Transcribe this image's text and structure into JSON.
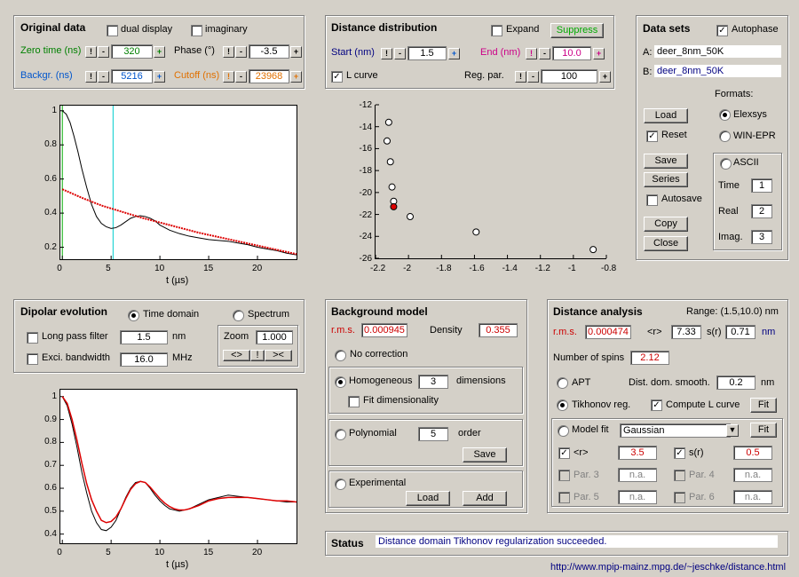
{
  "original": {
    "title": "Original data",
    "dual_display": "dual display",
    "dual_display_checked": false,
    "imaginary": "imaginary",
    "imaginary_checked": false,
    "zero_time_label": "Zero time (ns)",
    "zero_time": "320",
    "phase_label": "Phase (°)",
    "phase": "-3.5",
    "backgr_label": "Backgr. (ns)",
    "backgr": "5216",
    "cutoff_label": "Cutoff (ns)",
    "cutoff": "23968"
  },
  "distdist": {
    "title": "Distance distribution",
    "expand": "Expand",
    "expand_checked": false,
    "suppress": "Suppress",
    "start_label": "Start (nm)",
    "start": "1.5",
    "end_label": "End (nm)",
    "end": "10.0",
    "lcurve": "L curve",
    "lcurve_checked": true,
    "regpar_label": "Reg. par.",
    "regpar": "100"
  },
  "datasets": {
    "title": "Data sets",
    "autophase": "Autophase",
    "autophase_checked": true,
    "a_label": "A:",
    "a_value": "deer_8nm_50K",
    "b_label": "B:",
    "b_value": "deer_8nm_50K",
    "formats": "Formats:",
    "load": "Load",
    "reset": "Reset",
    "reset_checked": true,
    "elexsys": "Elexsys",
    "winepr": "WIN-EPR",
    "save": "Save",
    "series": "Series",
    "autosave": "Autosave",
    "autosave_checked": false,
    "copy": "Copy",
    "close": "Close",
    "ascii": "ASCII",
    "time_label": "Time",
    "time_val": "1",
    "real_label": "Real",
    "real_val": "2",
    "imag_label": "Imag.",
    "imag_val": "3"
  },
  "dipolar": {
    "title": "Dipolar evolution",
    "time_domain": "Time domain",
    "spectrum": "Spectrum",
    "longpass": "Long pass filter",
    "longpass_val": "1.5",
    "longpass_unit": "nm",
    "exci": "Exci. bandwidth",
    "exci_val": "16.0",
    "exci_unit": "MHz",
    "zoom_label": "Zoom",
    "zoom_val": "1.000",
    "zoom_btn1": "<>",
    "zoom_btn2": "!",
    "zoom_btn3": "><"
  },
  "background": {
    "title": "Background model",
    "rms_label": "r.m.s.",
    "rms": "0.000945",
    "density_label": "Density",
    "density": "0.355",
    "no_correction": "No correction",
    "homogeneous": "Homogeneous",
    "hom_dim": "3",
    "dimensions": "dimensions",
    "fit_dim": "Fit dimensionality",
    "polynomial": "Polynomial",
    "poly_order": "5",
    "order": "order",
    "poly_save": "Save",
    "experimental": "Experimental",
    "exp_load": "Load",
    "exp_add": "Add"
  },
  "analysis": {
    "title": "Distance analysis",
    "range": "Range: (1.5,10.0) nm",
    "rms_label": "r.m.s.",
    "rms": "0.000474",
    "r_label": "<r>",
    "r_val": "7.33",
    "sr_label": "s(r)",
    "sr_val": "0.71",
    "unit": "nm",
    "spins_label": "Number of spins",
    "spins": "2.12",
    "apt": "APT",
    "smooth_label": "Dist. dom. smooth.",
    "smooth": "0.2",
    "smooth_unit": "nm",
    "tikhonov": "Tikhonov reg.",
    "compute_lcurve": "Compute L curve",
    "fit": "Fit",
    "model_fit": "Model fit",
    "model": "Gaussian",
    "model_fit_btn": "Fit",
    "p1_label": "<r>",
    "p1": "3.5",
    "p2_label": "s(r)",
    "p2": "0.5",
    "p3_label": "Par. 3",
    "p3": "n.a.",
    "p4_label": "Par. 4",
    "p4": "n.a.",
    "p5_label": "Par. 5",
    "p5": "n.a.",
    "p6_label": "Par. 6",
    "p6": "n.a."
  },
  "status": {
    "label": "Status",
    "message": "Distance domain Tikhonov regularization succeeded."
  },
  "url": "http://www.mpip-mainz.mpg.de/~jeschke/distance.html",
  "colors": {
    "data": "#000000",
    "fit": "#dd0000",
    "zero_marker": "#00aa00",
    "cutoff_marker": "#00cccc",
    "lcurve_selected": "#dd0000"
  },
  "chart_data": [
    {
      "type": "line",
      "xlabel": "t (µs)",
      "x_ticks": [
        0,
        5,
        10,
        15,
        20
      ],
      "y_ticks": [
        0.2,
        0.4,
        0.6,
        0.8,
        1
      ],
      "xlim": [
        -0.2,
        24
      ],
      "ylim": [
        0.13,
        1.03
      ],
      "markers": [
        0.0,
        5.2
      ],
      "series": [
        {
          "x": [
            0,
            0.4,
            0.8,
            1.2,
            1.6,
            2,
            2.5,
            3,
            3.5,
            4,
            4.5,
            5,
            5.5,
            6,
            6.5,
            7,
            7.5,
            8,
            8.5,
            9,
            9.5,
            10,
            11,
            12,
            13,
            14,
            15,
            16,
            17,
            18,
            19,
            20,
            21,
            22,
            23,
            24
          ],
          "y": [
            1.0,
            0.98,
            0.93,
            0.85,
            0.76,
            0.66,
            0.55,
            0.45,
            0.38,
            0.34,
            0.32,
            0.31,
            0.315,
            0.33,
            0.35,
            0.37,
            0.38,
            0.385,
            0.38,
            0.37,
            0.355,
            0.33,
            0.3,
            0.28,
            0.265,
            0.255,
            0.245,
            0.24,
            0.235,
            0.225,
            0.215,
            0.2,
            0.19,
            0.18,
            0.165,
            0.155
          ]
        },
        {
          "x": [
            0,
            2,
            4,
            6,
            8,
            10,
            12,
            14,
            16,
            18,
            20,
            22,
            24
          ],
          "y": [
            0.54,
            0.49,
            0.445,
            0.41,
            0.375,
            0.345,
            0.315,
            0.285,
            0.26,
            0.235,
            0.21,
            0.185,
            0.16
          ]
        }
      ]
    },
    {
      "type": "scatter",
      "x_ticks": [
        -2.2,
        -2,
        -1.8,
        -1.6,
        -1.4,
        -1.2,
        -1,
        -0.8
      ],
      "y_ticks": [
        -12,
        -14,
        -16,
        -18,
        -20,
        -22,
        -24,
        -26
      ],
      "xlim": [
        -2.2,
        -0.8
      ],
      "ylim": [
        -26,
        -12
      ],
      "points": [
        {
          "x": -2.12,
          "y": -13.6
        },
        {
          "x": -2.13,
          "y": -15.3
        },
        {
          "x": -2.11,
          "y": -17.2
        },
        {
          "x": -2.1,
          "y": -19.5
        },
        {
          "x": -2.09,
          "y": -20.8
        },
        {
          "x": -2.09,
          "y": -21.3,
          "selected": true
        },
        {
          "x": -1.99,
          "y": -22.2
        },
        {
          "x": -1.59,
          "y": -23.6
        },
        {
          "x": -0.88,
          "y": -25.2
        }
      ]
    },
    {
      "type": "line",
      "xlabel": "t (µs)",
      "x_ticks": [
        0,
        5,
        10,
        15,
        20
      ],
      "y_ticks": [
        0.4,
        0.5,
        0.6,
        0.7,
        0.8,
        0.9,
        1
      ],
      "xlim": [
        -0.2,
        24
      ],
      "ylim": [
        0.36,
        1.03
      ],
      "series": [
        {
          "x": [
            0,
            0.5,
            1,
            1.5,
            2,
            2.5,
            3,
            3.5,
            4,
            4.5,
            5,
            5.5,
            6,
            6.5,
            7,
            7.5,
            8,
            8.5,
            9,
            9.5,
            10,
            10.5,
            11,
            11.5,
            12,
            12.5,
            13,
            14,
            15,
            16,
            17,
            18,
            19,
            20,
            21,
            22,
            23,
            24
          ],
          "y": [
            1.0,
            0.96,
            0.88,
            0.78,
            0.67,
            0.58,
            0.5,
            0.45,
            0.42,
            0.415,
            0.43,
            0.46,
            0.51,
            0.56,
            0.6,
            0.625,
            0.63,
            0.625,
            0.6,
            0.57,
            0.545,
            0.525,
            0.51,
            0.505,
            0.5,
            0.505,
            0.51,
            0.53,
            0.55,
            0.56,
            0.57,
            0.565,
            0.56,
            0.555,
            0.55,
            0.545,
            0.54,
            0.54
          ]
        },
        {
          "x": [
            0,
            0.5,
            1,
            1.5,
            2,
            2.5,
            3,
            3.5,
            4,
            4.5,
            5,
            5.5,
            6,
            6.5,
            7,
            7.5,
            8,
            8.5,
            9,
            9.5,
            10,
            10.5,
            11,
            11.5,
            12,
            12.5,
            13,
            14,
            15,
            16,
            17,
            18,
            19,
            20,
            21,
            22,
            23,
            24
          ],
          "y": [
            1.0,
            0.97,
            0.9,
            0.81,
            0.71,
            0.62,
            0.55,
            0.5,
            0.46,
            0.45,
            0.455,
            0.475,
            0.51,
            0.555,
            0.595,
            0.62,
            0.63,
            0.625,
            0.605,
            0.58,
            0.555,
            0.535,
            0.52,
            0.51,
            0.505,
            0.505,
            0.51,
            0.525,
            0.545,
            0.555,
            0.56,
            0.56,
            0.56,
            0.555,
            0.55,
            0.545,
            0.545,
            0.54
          ]
        }
      ]
    }
  ]
}
